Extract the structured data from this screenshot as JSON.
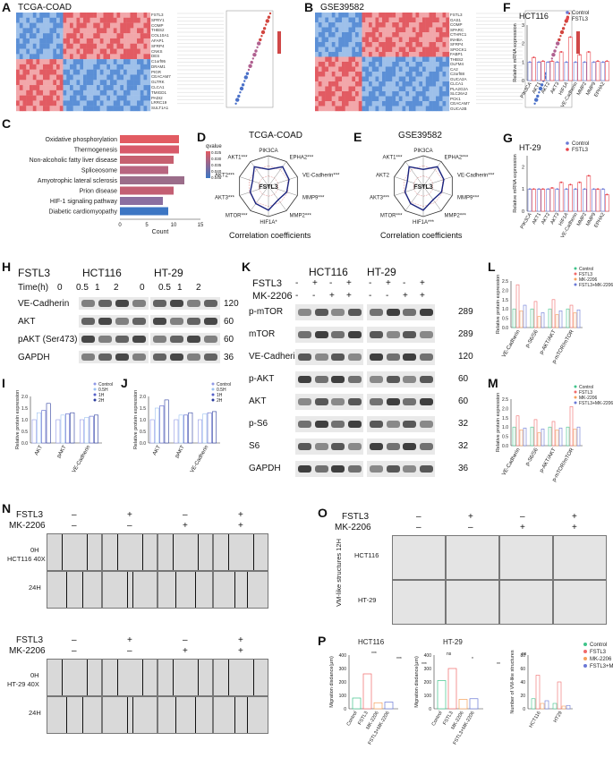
{
  "panels": {
    "A": {
      "label": "A",
      "title": "TCGA-COAD",
      "genes": [
        "FSTL3",
        "SPRY1",
        "COMP",
        "THBS2",
        "COL10A1",
        "AFAP1",
        "SFRP4",
        "CNKS",
        "DES",
        "C1orf95",
        "DRAM1",
        "PIGR",
        "CEACAM7",
        "GLTRK",
        "CLCA1",
        "TMIGD1",
        "PADI2",
        "LRRC19",
        "SULT1A1"
      ]
    },
    "B": {
      "label": "B",
      "title": "GSE39582",
      "genes": [
        "FSTL3",
        "GAS1",
        "COMP",
        "SPARC",
        "CTHRC1",
        "INHBA",
        "SFRP4",
        "SPOCK1",
        "FABP1",
        "THBS2",
        "OLFM4",
        "CA2",
        "C2orf88",
        "GUCA2A",
        "CLCA1",
        "PLA2G2A",
        "SLC26A2",
        "PCK1",
        "CEACAM7",
        "GUCA2B"
      ]
    },
    "C": {
      "label": "C",
      "xlabel": "Count",
      "pathways": [
        "Oxidative phosphorylation",
        "Thermogenesis",
        "Non-alcoholic fatty liver disease",
        "Spliceosome",
        "Amyotrophic lateral sclerosis",
        "Prion disease",
        "HIF-1 signaling pathway",
        "Diabetic cardiomyopathy"
      ],
      "legend_title": "qvalue",
      "legend_ticks": [
        "0.025",
        "0.030",
        "0.035",
        "0.040",
        "0.045"
      ],
      "axis_ticks": [
        "0",
        "5",
        "10",
        "15"
      ]
    },
    "D": {
      "label": "D",
      "title": "TCGA-COAD",
      "center": "FSTL3",
      "footer": "Correlation coefficients",
      "nodes": [
        "PIK3CA",
        "EPHA2***",
        "VE-Cadherin***",
        "MMP9***",
        "MMP2***",
        "HIF1A*",
        "MTOR***",
        "AKT3***",
        "AKT2***",
        "AKT1***"
      ]
    },
    "E": {
      "label": "E",
      "title": "GSE39582",
      "center": "FSTL3",
      "footer": "Correlation coefficients",
      "nodes": [
        "PIK3CA",
        "EPHA2***",
        "VE-Cadherin***",
        "MMP9***",
        "MMP2***",
        "HIF1A***",
        "MTOR***",
        "AKT3***",
        "AKT2",
        "AKT1***"
      ]
    },
    "F": {
      "label": "F",
      "title": "HCT116",
      "ylabel": "Relative mRNA expression",
      "legend": [
        "Control",
        "FSTL3"
      ]
    },
    "G": {
      "label": "G",
      "title": "HT-29",
      "ylabel": "Relative mRNA expression",
      "legend": [
        "Control",
        "FSTL3"
      ]
    },
    "H": {
      "label": "H",
      "gene": "FSTL3",
      "cells": [
        "HCT116",
        "HT-29"
      ],
      "time_label": "Time(h)",
      "times": [
        "0",
        "0.5",
        "1",
        "2",
        "0",
        "0.5",
        "1",
        "2"
      ],
      "rows": [
        {
          "name": "VE-Cadherin",
          "kda": "120"
        },
        {
          "name": "AKT",
          "kda": "60"
        },
        {
          "name": "pAKT (Ser473)",
          "kda": "60"
        },
        {
          "name": "GAPDH",
          "kda": "36"
        }
      ]
    },
    "I": {
      "label": "I",
      "ylabel": "Relative protein expression",
      "categories": [
        "AKT",
        "pAKT",
        "VE-Cadherin"
      ],
      "legend": [
        "Control",
        "0.5H",
        "1H",
        "2H"
      ]
    },
    "J": {
      "label": "J",
      "ylabel": "Relative protein expression",
      "categories": [
        "AKT",
        "pAKT",
        "VE-Cadherin"
      ],
      "legend": [
        "Control",
        "0.5H",
        "1H",
        "2H"
      ]
    },
    "K": {
      "label": "K",
      "cells": [
        "HCT116",
        "HT-29"
      ],
      "treat1": "FSTL3",
      "treat2": "MK-2206",
      "signs1": [
        "-",
        "+",
        "-",
        "+",
        "-",
        "+",
        "-",
        "+"
      ],
      "signs2": [
        "-",
        "-",
        "+",
        "+",
        "-",
        "-",
        "+",
        "+"
      ],
      "rows": [
        {
          "name": "p-mTOR",
          "kda": "289"
        },
        {
          "name": "mTOR",
          "kda": "289"
        },
        {
          "name": "VE-Cadherin",
          "kda": "120"
        },
        {
          "name": "p-AKT",
          "kda": "60"
        },
        {
          "name": "AKT",
          "kda": "60"
        },
        {
          "name": "p-S6",
          "kda": "32"
        },
        {
          "name": "S6",
          "kda": "32"
        },
        {
          "name": "GAPDH",
          "kda": "36"
        }
      ]
    },
    "L": {
      "label": "L",
      "ylabel": "Relative protein expression",
      "categories": [
        "VE-Cadherin",
        "p-S6/S6",
        "p-AKT/AKT",
        "p-mTOR/mTOR"
      ],
      "legend": [
        "Control",
        "FSTL3",
        "MK-2206",
        "FSTL3+MK-2206"
      ]
    },
    "M": {
      "label": "M",
      "ylabel": "Relative protein expression",
      "categories": [
        "VE-Cadherin",
        "p-S6/S6",
        "p-AKT/AKT",
        "p-mTOR/mTOR"
      ],
      "legend": [
        "Control",
        "FSTL3",
        "MK-2206",
        "FSTL3+MK-2206"
      ]
    },
    "N": {
      "label": "N",
      "treat1": "FSTL3",
      "treat2": "MK-2206",
      "signs1": [
        "–",
        "+",
        "–",
        "+"
      ],
      "signs2": [
        "–",
        "–",
        "+",
        "+"
      ],
      "row1": "HCT116 40X",
      "row2": "HT-29 40X",
      "t0": "0H",
      "t24": "24H"
    },
    "O": {
      "label": "O",
      "treat1": "FSTL3",
      "treat2": "MK-2206",
      "signs1": [
        "–",
        "+",
        "–",
        "+"
      ],
      "signs2": [
        "–",
        "–",
        "+",
        "+"
      ],
      "side": "VM-like structures 12H",
      "row1": "HCT116",
      "row2": "HT-29"
    },
    "P": {
      "label": "P",
      "title1": "HCT116",
      "title2": "HT-29",
      "ylabel1": "Migration disdance(μm)",
      "ylabel2": "Number  of  VM-like structures",
      "groups": [
        "Control",
        "FSTL3",
        "MK-2206",
        "FSTL3+MK-2206"
      ],
      "cats3": [
        "HCT116",
        "HT29"
      ],
      "sig": [
        "***",
        "***",
        "***",
        "ns",
        "*",
        "**",
        "ns"
      ]
    }
  },
  "colors": {
    "red": "#e8434b",
    "pink": "#f08a8f",
    "blue": "#6a78d6",
    "green": "#3fc48a",
    "orange": "#f5a05a",
    "salmon": "#f06a6a"
  },
  "chart_data": [
    {
      "type": "bar",
      "title": "HCT116",
      "ylabel": "Relative mRNA expression",
      "ylim": [
        0,
        3
      ],
      "categories": [
        "PIK3CA",
        "AKT1",
        "AKT2",
        "AKT3",
        "HIF1A",
        "VE-Cadherin",
        "MMP2",
        "MMP9",
        "EPHA2"
      ],
      "series": [
        {
          "name": "Control",
          "values": [
            1.0,
            1.0,
            1.0,
            1.0,
            1.0,
            1.0,
            1.0,
            1.0,
            1.0
          ]
        },
        {
          "name": "FSTL3",
          "values": [
            1.25,
            1.05,
            1.05,
            1.55,
            2.35,
            1.4,
            1.55,
            1.05,
            1.05
          ]
        }
      ]
    },
    {
      "type": "bar",
      "title": "HT-29",
      "ylabel": "Relative mRNA expression",
      "ylim": [
        0,
        2.5
      ],
      "categories": [
        "PIK3CA",
        "AKT1",
        "AKT2",
        "AKT3",
        "HIF1A",
        "VE-Cadherin",
        "MMP2",
        "MMP9",
        "EPHA2"
      ],
      "series": [
        {
          "name": "Control",
          "values": [
            1.0,
            1.0,
            1.0,
            1.0,
            1.0,
            1.0,
            1.0,
            1.0,
            1.0
          ]
        },
        {
          "name": "FSTL3",
          "values": [
            1.0,
            1.0,
            1.05,
            1.3,
            1.2,
            1.3,
            1.6,
            1.0,
            0.75
          ]
        }
      ]
    },
    {
      "type": "bar",
      "xlabel": "Count",
      "categories": [
        "Oxidative phosphorylation",
        "Thermogenesis",
        "Non-alcoholic fatty liver disease",
        "Spliceosome",
        "Amyotrophic lateral sclerosis",
        "Prion disease",
        "HIF-1 signaling pathway",
        "Diabetic cardiomyopathy"
      ],
      "values": [
        11,
        11,
        10,
        9,
        12,
        10,
        8,
        9
      ],
      "xlim": [
        0,
        15
      ]
    }
  ]
}
